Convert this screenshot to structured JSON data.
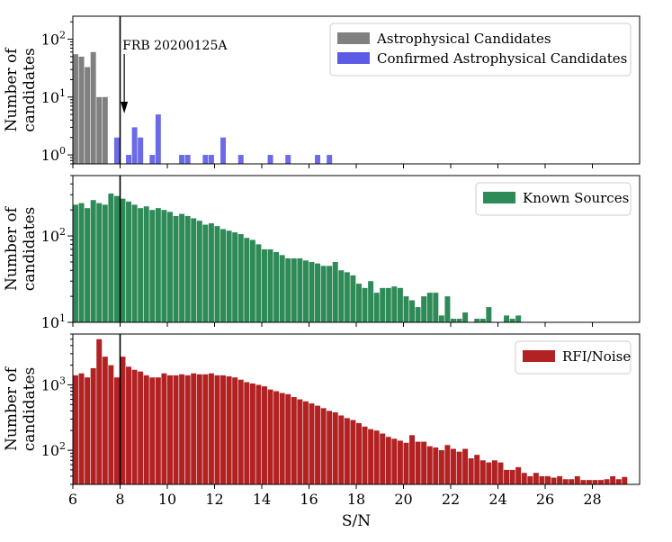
{
  "chart_data": [
    {
      "type": "bar",
      "scale": "log",
      "ylabel_lines": [
        "Number of",
        "candidates"
      ],
      "ylim": [
        0.7,
        250
      ],
      "yticks": [
        {
          "value": 1,
          "base": "10",
          "exp": "0"
        },
        {
          "value": 10,
          "base": "10",
          "exp": "1"
        },
        {
          "value": 100,
          "base": "10",
          "exp": "2"
        }
      ],
      "annotation": {
        "text": "FRB 20200125A",
        "x": 8.1
      },
      "series": [
        {
          "name": "Astrophysical Candidates",
          "color": "#808080",
          "x_start": 6.0,
          "bin_width": 0.25,
          "values": [
            55,
            50,
            33,
            60,
            10,
            10
          ]
        },
        {
          "name": "Confirmed Astrophysical Candidates",
          "color": "#5b5be6",
          "x_start": 7.75,
          "bin_width": 0.25,
          "values": [
            2,
            0,
            1,
            3,
            2,
            0,
            1,
            5,
            0,
            0,
            0,
            1,
            1,
            0,
            0,
            1,
            1,
            0,
            2,
            0,
            0,
            1,
            0,
            0,
            0,
            0,
            1,
            0,
            0,
            1,
            0,
            0,
            0,
            0,
            1,
            0,
            1,
            0,
            0
          ]
        }
      ]
    },
    {
      "type": "bar",
      "scale": "log",
      "ylabel_lines": [
        "Number of",
        "candidates"
      ],
      "ylim": [
        10,
        500
      ],
      "yticks": [
        {
          "value": 10,
          "base": "10",
          "exp": "1"
        },
        {
          "value": 100,
          "base": "10",
          "exp": "2"
        }
      ],
      "series": [
        {
          "name": "Known Sources",
          "color": "#2e8b57",
          "x_start": 6.0,
          "bin_width": 0.25,
          "values": [
            230,
            240,
            210,
            260,
            240,
            230,
            310,
            290,
            270,
            250,
            230,
            210,
            220,
            200,
            210,
            200,
            190,
            170,
            180,
            170,
            160,
            150,
            135,
            140,
            130,
            120,
            115,
            110,
            105,
            95,
            90,
            80,
            70,
            70,
            65,
            60,
            55,
            55,
            55,
            52,
            50,
            48,
            45,
            45,
            50,
            40,
            38,
            35,
            28,
            25,
            30,
            22,
            25,
            25,
            26,
            25,
            20,
            18,
            15,
            20,
            22,
            22,
            12,
            20,
            11,
            11,
            13,
            10,
            11,
            11,
            15,
            10,
            10,
            12,
            11,
            12
          ]
        }
      ]
    },
    {
      "type": "bar",
      "scale": "log",
      "ylabel_lines": [
        "Number of",
        "candidates"
      ],
      "ylim": [
        30,
        6000
      ],
      "yticks": [
        {
          "value": 100,
          "base": "10",
          "exp": "2"
        },
        {
          "value": 1000,
          "base": "10",
          "exp": "3"
        }
      ],
      "xlabel": "S/N",
      "xlim": [
        6,
        30
      ],
      "xticks": [
        6,
        8,
        10,
        12,
        14,
        16,
        18,
        20,
        22,
        24,
        26,
        28
      ],
      "series": [
        {
          "name": "RFI/Noise",
          "color": "#b22222",
          "x_start": 6.0,
          "bin_width": 0.25,
          "values": [
            1400,
            1500,
            1300,
            1800,
            5000,
            2700,
            2000,
            1300,
            2700,
            1900,
            1700,
            1600,
            1400,
            1300,
            1300,
            1500,
            1400,
            1400,
            1450,
            1400,
            1500,
            1450,
            1450,
            1500,
            1400,
            1400,
            1350,
            1300,
            1200,
            1100,
            1050,
            1000,
            950,
            850,
            800,
            750,
            720,
            650,
            600,
            560,
            520,
            480,
            440,
            400,
            380,
            340,
            310,
            290,
            260,
            230,
            210,
            200,
            180,
            160,
            150,
            140,
            130,
            170,
            135,
            135,
            115,
            110,
            100,
            120,
            105,
            95,
            105,
            75,
            85,
            70,
            65,
            70,
            65,
            50,
            50,
            55,
            45,
            40,
            45,
            40,
            40,
            38,
            40,
            36,
            36,
            40,
            35,
            35,
            35,
            35,
            36,
            40,
            36,
            39
          ]
        }
      ]
    }
  ],
  "marker_line_x": 8.0
}
